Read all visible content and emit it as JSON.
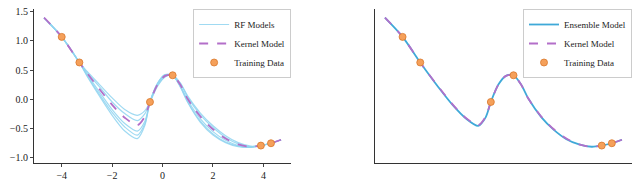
{
  "chart_data": [
    {
      "type": "line",
      "x": [
        -4.7,
        -4.0,
        -3.3,
        -3.0,
        -2.5,
        -2.0,
        -1.5,
        -1.0,
        -0.7,
        -0.5,
        -0.2,
        0.1,
        0.4,
        0.7,
        1.0,
        1.5,
        2.0,
        2.5,
        3.0,
        3.5,
        3.9,
        4.3,
        4.7
      ],
      "series": [
        {
          "name": "RF Models",
          "color": "#8fd3f0",
          "values": [
            1.4,
            1.07,
            0.63,
            0.4,
            0.05,
            -0.28,
            -0.55,
            -0.68,
            -0.45,
            -0.05,
            0.27,
            0.42,
            0.41,
            0.22,
            -0.05,
            -0.38,
            -0.6,
            -0.74,
            -0.81,
            -0.83,
            -0.8,
            -0.76,
            -0.7
          ]
        },
        {
          "name": "RF Models",
          "color": "#8fd3f0",
          "values": [
            1.4,
            1.07,
            0.63,
            0.48,
            0.25,
            0.02,
            -0.18,
            -0.28,
            -0.2,
            -0.05,
            0.22,
            0.38,
            0.41,
            0.28,
            0.05,
            -0.24,
            -0.46,
            -0.63,
            -0.75,
            -0.81,
            -0.8,
            -0.76,
            -0.7
          ]
        },
        {
          "name": "RF Models",
          "color": "#8fd3f0",
          "values": [
            1.4,
            1.07,
            0.63,
            0.43,
            0.12,
            -0.18,
            -0.42,
            -0.55,
            -0.38,
            -0.05,
            0.26,
            0.41,
            0.41,
            0.23,
            -0.02,
            -0.34,
            -0.56,
            -0.71,
            -0.8,
            -0.82,
            -0.8,
            -0.76,
            -0.7
          ]
        },
        {
          "name": "RF Models",
          "color": "#8fd3f0",
          "values": [
            1.4,
            1.07,
            0.63,
            0.46,
            0.21,
            -0.05,
            -0.25,
            -0.37,
            -0.25,
            -0.05,
            0.24,
            0.39,
            0.41,
            0.27,
            0.03,
            -0.27,
            -0.49,
            -0.66,
            -0.77,
            -0.82,
            -0.8,
            -0.76,
            -0.7
          ]
        },
        {
          "name": "RF Models",
          "color": "#8fd3f0",
          "values": [
            1.4,
            1.07,
            0.63,
            0.41,
            0.08,
            -0.23,
            -0.48,
            -0.62,
            -0.42,
            -0.05,
            0.27,
            0.42,
            0.41,
            0.21,
            -0.06,
            -0.4,
            -0.62,
            -0.75,
            -0.82,
            -0.83,
            -0.8,
            -0.76,
            -0.7
          ]
        },
        {
          "name": "Kernel Model",
          "color": "#b36fc9",
          "line_style": "dashed",
          "values": [
            1.4,
            1.07,
            0.63,
            0.45,
            0.17,
            -0.1,
            -0.32,
            -0.45,
            -0.3,
            -0.05,
            0.25,
            0.4,
            0.41,
            0.25,
            0.0,
            -0.3,
            -0.52,
            -0.68,
            -0.78,
            -0.82,
            -0.8,
            -0.76,
            -0.7
          ]
        },
        {
          "name": "Training Data",
          "type": "scatter",
          "marker": "circle",
          "color": "#f5a05a",
          "x": [
            -4.0,
            -3.3,
            -0.5,
            0.4,
            3.9,
            4.3
          ],
          "values": [
            1.07,
            0.63,
            -0.05,
            0.41,
            -0.8,
            -0.76
          ]
        }
      ],
      "xlim": [
        -5.1,
        5.1
      ],
      "ylim": [
        -1.1,
        1.55
      ],
      "xticks": [
        {
          "value": -4,
          "label": "−4"
        },
        {
          "value": -2,
          "label": "−2"
        },
        0,
        2,
        4
      ],
      "yticks": [
        {
          "value": -1,
          "label": "−1.0"
        },
        {
          "value": -0.5,
          "label": "−0.5"
        },
        {
          "value": 0,
          "label": "0.0"
        },
        {
          "value": 0.5,
          "label": "0.5"
        },
        {
          "value": 1,
          "label": "1.0"
        },
        {
          "value": 1.5,
          "label": "1.5"
        }
      ],
      "grid": false,
      "legend": "upper right"
    },
    {
      "type": "line",
      "x": [
        -4.7,
        -4.0,
        -3.3,
        -3.0,
        -2.5,
        -2.0,
        -1.5,
        -1.0,
        -0.7,
        -0.5,
        -0.2,
        0.1,
        0.4,
        0.7,
        1.0,
        1.5,
        2.0,
        2.5,
        3.0,
        3.5,
        3.9,
        4.3,
        4.7
      ],
      "series": [
        {
          "name": "Ensemble Model",
          "color": "#3fa9d8",
          "values": [
            1.4,
            1.07,
            0.63,
            0.45,
            0.16,
            -0.11,
            -0.33,
            -0.46,
            -0.31,
            -0.05,
            0.25,
            0.4,
            0.41,
            0.25,
            0.0,
            -0.31,
            -0.53,
            -0.69,
            -0.78,
            -0.82,
            -0.8,
            -0.76,
            -0.7
          ]
        },
        {
          "name": "Kernel Model",
          "color": "#b36fc9",
          "line_style": "dashed",
          "values": [
            1.4,
            1.07,
            0.63,
            0.45,
            0.17,
            -0.1,
            -0.32,
            -0.45,
            -0.3,
            -0.05,
            0.25,
            0.4,
            0.41,
            0.25,
            0.0,
            -0.3,
            -0.52,
            -0.68,
            -0.78,
            -0.82,
            -0.8,
            -0.76,
            -0.7
          ]
        },
        {
          "name": "Training Data",
          "type": "scatter",
          "marker": "circle",
          "color": "#f5a05a",
          "x": [
            -4.0,
            -3.3,
            -0.5,
            0.4,
            3.9,
            4.3
          ],
          "values": [
            1.07,
            0.63,
            -0.05,
            0.41,
            -0.8,
            -0.76
          ]
        }
      ],
      "xlim": [
        -5.1,
        5.1
      ],
      "ylim": [
        -1.1,
        1.55
      ],
      "tick_labels": false,
      "grid": false,
      "legend": "upper right"
    }
  ]
}
